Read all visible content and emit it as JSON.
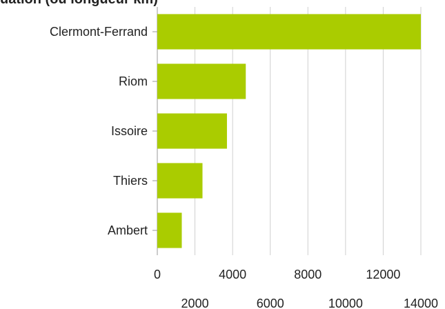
{
  "chart_data": {
    "type": "bar",
    "orientation": "horizontal",
    "title": "uation (ou longueur km)",
    "categories": [
      "Clermont-Ferrand",
      "Riom",
      "Issoire",
      "Thiers",
      "Ambert"
    ],
    "values": [
      14000,
      4700,
      3700,
      2400,
      1300
    ],
    "color": "#aacc00",
    "xlim": [
      0,
      14000
    ],
    "xticks": [
      0,
      2000,
      4000,
      6000,
      8000,
      10000,
      12000,
      14000
    ],
    "grid": true
  }
}
